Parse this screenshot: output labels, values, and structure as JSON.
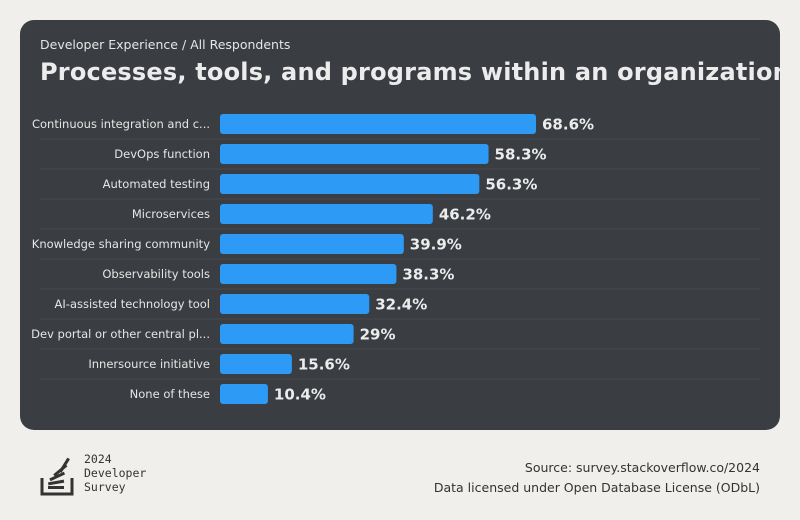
{
  "header": {
    "breadcrumb": "Developer Experience / All Respondents",
    "title": "Processes, tools, and programs within an organization"
  },
  "chart_data": {
    "type": "bar",
    "orientation": "horizontal",
    "categories": [
      "Continuous integration and c...",
      "DevOps function",
      "Automated testing",
      "Microservices",
      "Knowledge sharing community",
      "Observability tools",
      "AI-assisted technology tool",
      "Dev portal or other central pl...",
      "Innersource initiative",
      "None of these"
    ],
    "values": [
      68.6,
      58.3,
      56.3,
      46.2,
      39.9,
      38.3,
      32.4,
      29,
      15.6,
      10.4
    ],
    "value_labels": [
      "68.6%",
      "58.3%",
      "56.3%",
      "46.2%",
      "39.9%",
      "38.3%",
      "32.4%",
      "29%",
      "15.6%",
      "10.4%"
    ],
    "xlim": [
      0,
      100
    ],
    "bar_color": "#2d9bf5",
    "grid": false
  },
  "logo": {
    "icon": "stack-overflow-logo-icon",
    "year": "2024",
    "line1": "Developer",
    "line2": "Survey"
  },
  "source": {
    "line1": "Source: survey.stackoverflow.co/2024",
    "line2": "Data licensed under Open Database License (ODbL)"
  }
}
